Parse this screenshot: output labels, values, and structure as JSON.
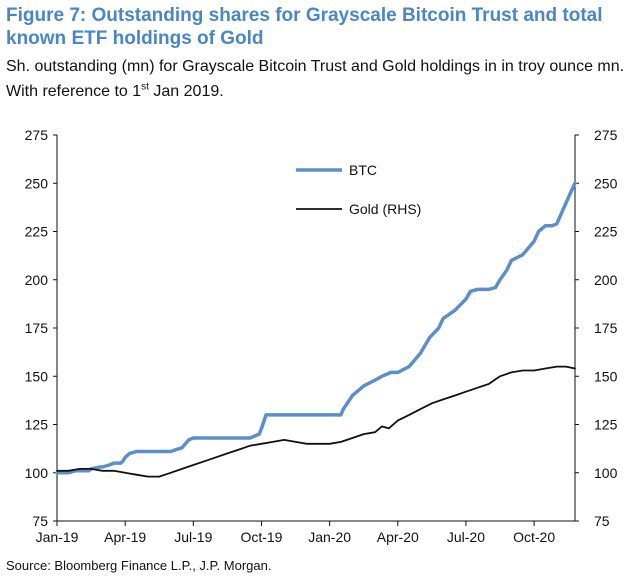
{
  "figure": {
    "title": "Figure 7: Outstanding shares for Grayscale Bitcoin Trust and total known ETF holdings of Gold",
    "subtitle_before_sup": "Sh. outstanding (mn) for Grayscale Bitcoin Trust and Gold holdings in in troy ounce mn. With reference to 1",
    "subtitle_sup": "st",
    "subtitle_after_sup": " Jan 2019.",
    "source": "Source: Bloomberg Finance L.P., J.P. Morgan."
  },
  "chart_data": {
    "type": "line",
    "ylim": [
      75,
      275
    ],
    "yticks": [
      75,
      100,
      125,
      150,
      175,
      200,
      225,
      250,
      275
    ],
    "y2lim": [
      75,
      275
    ],
    "y2ticks": [
      75,
      100,
      125,
      150,
      175,
      200,
      225,
      250,
      275
    ],
    "xticks": [
      "Jan-19",
      "Apr-19",
      "Jul-19",
      "Oct-19",
      "Jan-20",
      "Apr-20",
      "Jul-20",
      "Oct-20"
    ],
    "xlim": [
      0,
      22.8
    ],
    "legend_position": "top-center",
    "grid": false,
    "series": [
      {
        "name": "BTC",
        "color": "#5b8fc9",
        "x": [
          0,
          0.5,
          0.8,
          1.0,
          1.4,
          1.5,
          1.9,
          2.0,
          2.3,
          2.5,
          2.8,
          2.9,
          3.0,
          3.2,
          3.5,
          4.0,
          4.5,
          4.8,
          5.0,
          5.5,
          5.8,
          6.0,
          6.5,
          7.0,
          7.5,
          8.0,
          8.5,
          8.9,
          9.0,
          9.2,
          9.5,
          10.0,
          10.5,
          11.0,
          11.5,
          12.0,
          12.5,
          12.6,
          13.0,
          13.2,
          13.5,
          14.0,
          14.3,
          14.7,
          15.0,
          15.5,
          16.0,
          16.4,
          16.8,
          17.0,
          17.5,
          18.0,
          18.2,
          18.5,
          19.0,
          19.3,
          19.5,
          19.8,
          20.0,
          20.5,
          21.0,
          21.2,
          21.5,
          21.8,
          22.0,
          22.3,
          22.6,
          22.8
        ],
        "values": [
          100,
          100,
          101,
          101,
          101,
          102,
          103,
          103,
          104,
          105,
          105,
          106,
          108,
          110,
          111,
          111,
          111,
          111,
          111,
          113,
          117,
          118,
          118,
          118,
          118,
          118,
          118,
          120,
          123,
          130,
          130,
          130,
          130,
          130,
          130,
          130,
          130,
          133,
          140,
          142,
          145,
          148,
          150,
          152,
          152,
          155,
          162,
          170,
          175,
          180,
          184,
          190,
          194,
          195,
          195,
          196,
          200,
          205,
          210,
          213,
          220,
          225,
          228,
          228,
          229,
          237,
          245,
          250
        ]
      },
      {
        "name": "Gold (RHS)",
        "color": "#111111",
        "x": [
          0,
          0.5,
          1.0,
          1.5,
          2.0,
          2.5,
          3.0,
          3.5,
          4.0,
          4.5,
          5.0,
          5.5,
          6.0,
          6.5,
          7.0,
          7.5,
          8.0,
          8.5,
          9.0,
          9.5,
          10.0,
          10.5,
          11.0,
          11.5,
          12.0,
          12.5,
          13.0,
          13.5,
          14.0,
          14.3,
          14.6,
          15.0,
          15.5,
          16.0,
          16.5,
          17.0,
          17.5,
          18.0,
          18.5,
          19.0,
          19.5,
          20.0,
          20.5,
          21.0,
          21.5,
          22.0,
          22.4,
          22.8
        ],
        "values": [
          101,
          101,
          102,
          102,
          101,
          101,
          100,
          99,
          98,
          98,
          100,
          102,
          104,
          106,
          108,
          110,
          112,
          114,
          115,
          116,
          117,
          116,
          115,
          115,
          115,
          116,
          118,
          120,
          121,
          124,
          123,
          127,
          130,
          133,
          136,
          138,
          140,
          142,
          144,
          146,
          150,
          152,
          153,
          153,
          154,
          155,
          155,
          154
        ]
      }
    ]
  }
}
